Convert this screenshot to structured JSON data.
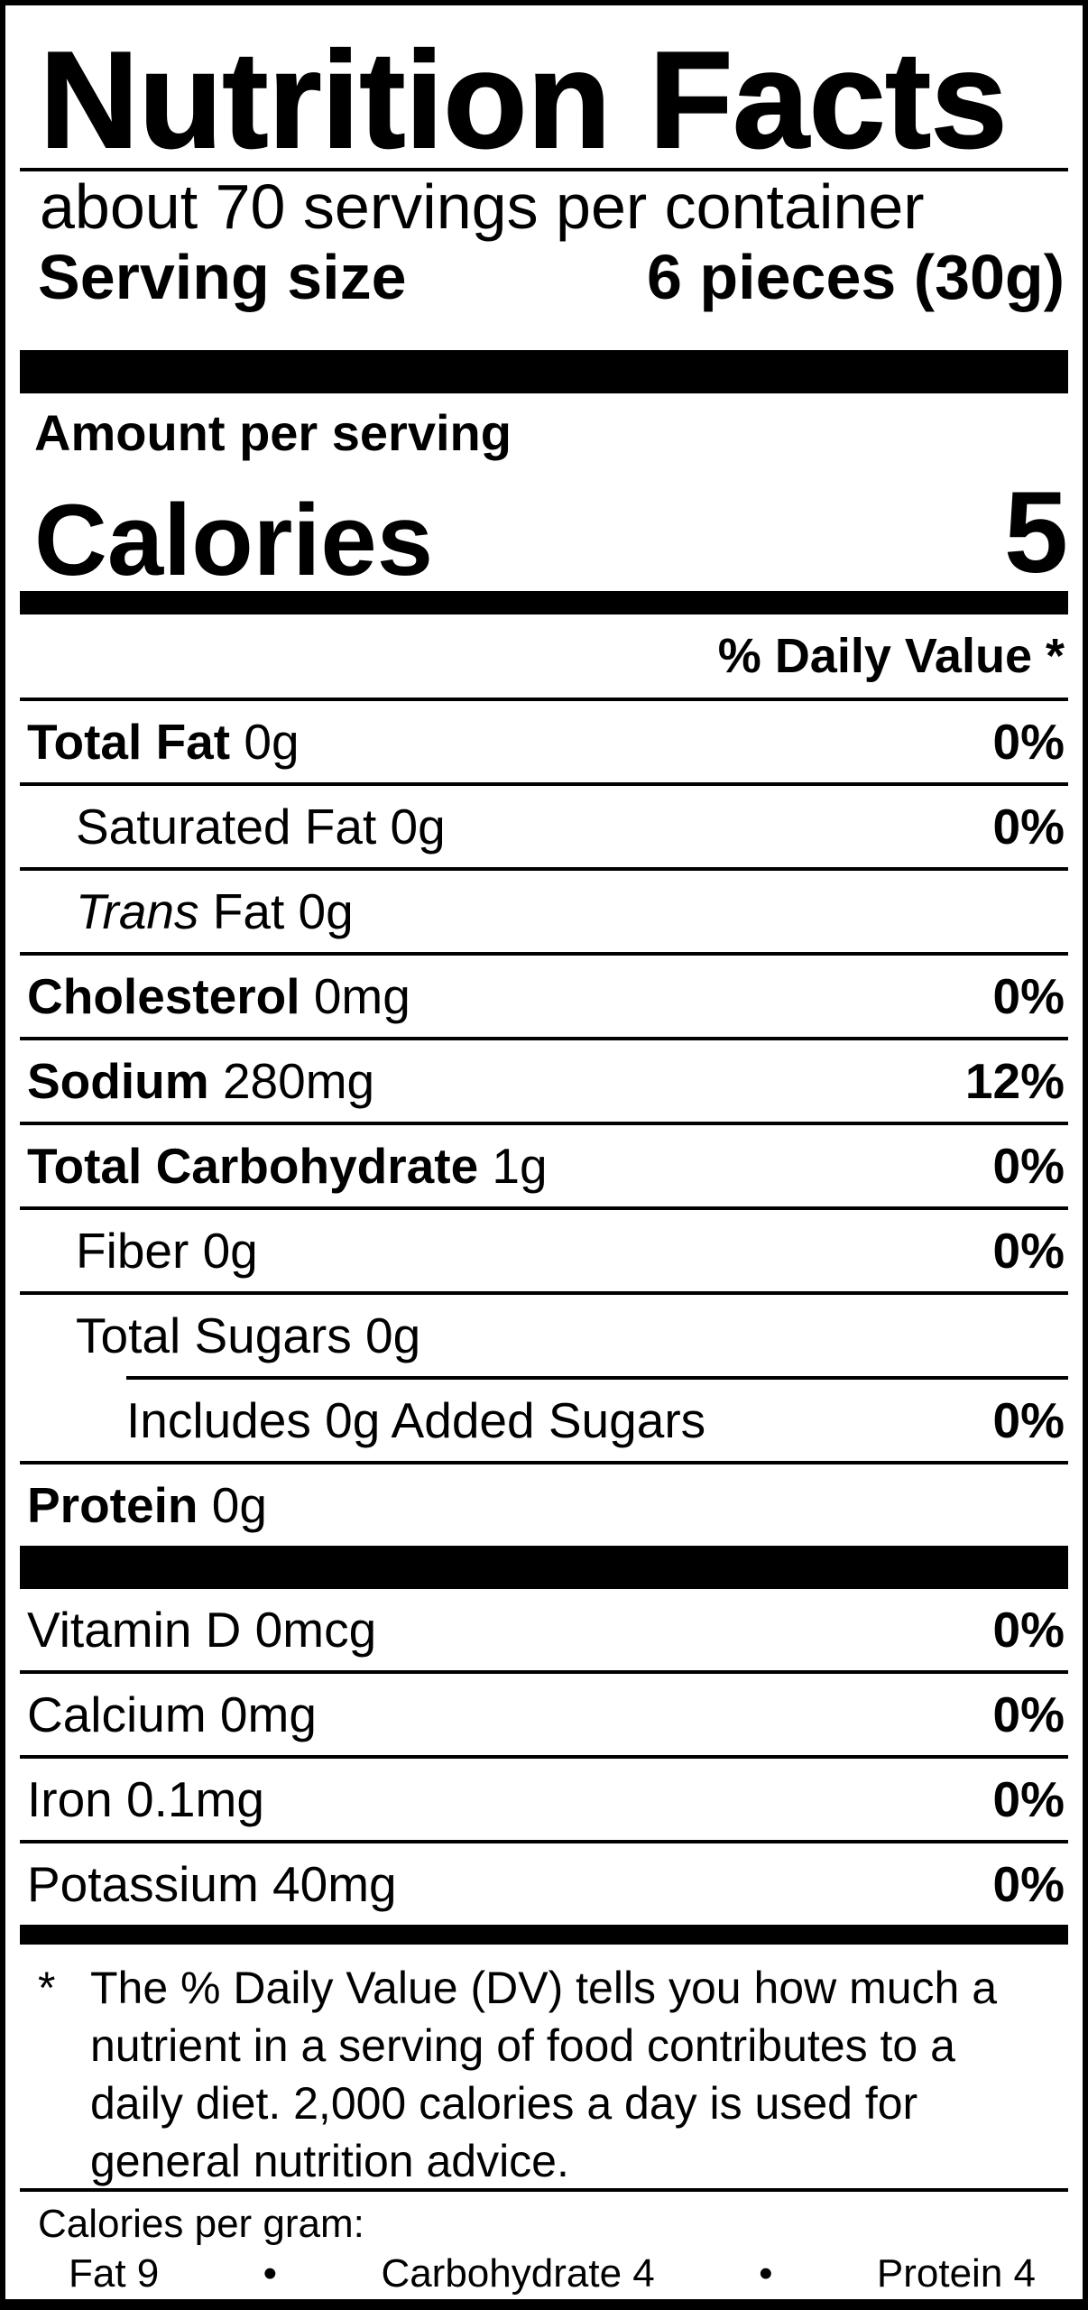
{
  "colors": {
    "ink": "#000000",
    "paper": "#ffffff"
  },
  "label": {
    "title": "Nutrition Facts",
    "servings_per_container": "about 70 servings per container",
    "serving_size": {
      "label": "Serving size",
      "value": "6 pieces (30g)"
    },
    "amount_per_serving": "Amount per serving",
    "calories": {
      "label": "Calories",
      "value": "5"
    },
    "daily_value_header": "% Daily Value *",
    "nutrients": [
      {
        "key": "total-fat",
        "parts": [
          {
            "t": "Total Fat",
            "s": "b"
          },
          {
            "t": " 0g",
            "s": "r"
          }
        ],
        "dv": "0%",
        "indent": 0,
        "divider": "none"
      },
      {
        "key": "saturated-fat",
        "parts": [
          {
            "t": "Saturated Fat 0g",
            "s": "r"
          }
        ],
        "dv": "0%",
        "indent": 1,
        "divider": "full"
      },
      {
        "key": "trans-fat",
        "parts": [
          {
            "t": "Trans",
            "s": "i"
          },
          {
            "t": " Fat 0g",
            "s": "r"
          }
        ],
        "dv": "",
        "indent": 1,
        "divider": "full"
      },
      {
        "key": "cholesterol",
        "parts": [
          {
            "t": "Cholesterol",
            "s": "b"
          },
          {
            "t": " 0mg",
            "s": "r"
          }
        ],
        "dv": "0%",
        "indent": 0,
        "divider": "full"
      },
      {
        "key": "sodium",
        "parts": [
          {
            "t": "Sodium",
            "s": "b"
          },
          {
            "t": " 280mg",
            "s": "r"
          }
        ],
        "dv": "12%",
        "indent": 0,
        "divider": "full"
      },
      {
        "key": "total-carbohydrate",
        "parts": [
          {
            "t": "Total Carbohydrate",
            "s": "b"
          },
          {
            "t": " 1g",
            "s": "r"
          }
        ],
        "dv": "0%",
        "indent": 0,
        "divider": "full"
      },
      {
        "key": "fiber",
        "parts": [
          {
            "t": "Fiber 0g",
            "s": "r"
          }
        ],
        "dv": "0%",
        "indent": 1,
        "divider": "full"
      },
      {
        "key": "total-sugars",
        "parts": [
          {
            "t": "Total Sugars 0g",
            "s": "r"
          }
        ],
        "dv": "",
        "indent": 1,
        "divider": "full"
      },
      {
        "key": "added-sugars",
        "parts": [
          {
            "t": "Includes 0g Added Sugars",
            "s": "r"
          }
        ],
        "dv": "0%",
        "indent": 2,
        "divider": "inset"
      },
      {
        "key": "protein",
        "parts": [
          {
            "t": "Protein",
            "s": "b"
          },
          {
            "t": " 0g",
            "s": "r"
          }
        ],
        "dv": "",
        "indent": 0,
        "divider": "full"
      }
    ],
    "vitamins": [
      {
        "key": "vitamin-d",
        "parts": [
          {
            "t": "Vitamin D 0mcg",
            "s": "r"
          }
        ],
        "dv": "0%",
        "indent": 0,
        "divider": "none"
      },
      {
        "key": "calcium",
        "parts": [
          {
            "t": "Calcium 0mg",
            "s": "r"
          }
        ],
        "dv": "0%",
        "indent": 0,
        "divider": "full"
      },
      {
        "key": "iron",
        "parts": [
          {
            "t": "Iron 0.1mg",
            "s": "r"
          }
        ],
        "dv": "0%",
        "indent": 0,
        "divider": "full"
      },
      {
        "key": "potassium",
        "parts": [
          {
            "t": "Potassium 40mg",
            "s": "r"
          }
        ],
        "dv": "0%",
        "indent": 0,
        "divider": "full"
      }
    ],
    "footnote": {
      "marker": "*",
      "text": "The % Daily Value (DV) tells you how much a nutrient in a serving of food contributes to a daily diet. 2,000 calories a day is used for general nutrition advice."
    },
    "calories_per_gram": {
      "heading": "Calories per gram:",
      "items": [
        "Fat 9",
        "Carbohydrate 4",
        "Protein 4"
      ],
      "separator": "•"
    }
  }
}
